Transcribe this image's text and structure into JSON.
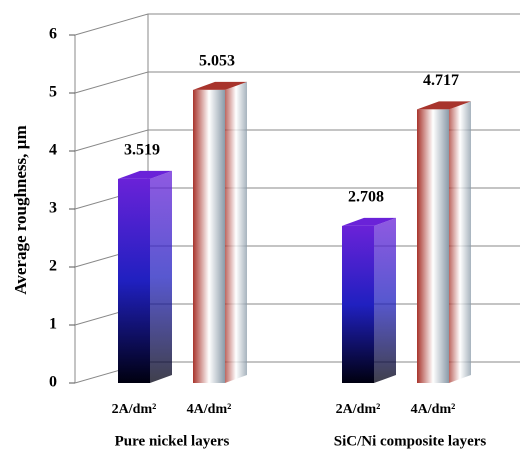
{
  "chart_data": {
    "type": "bar3d",
    "y_label": "Average roughness, µm",
    "categories": [
      "Pure nickel layers",
      "SiC/Ni composite layers"
    ],
    "series": [
      {
        "name": "2A/dm²",
        "color": "#6a22d8",
        "values": [
          3.519,
          2.708
        ]
      },
      {
        "name": "4A/dm²",
        "color": "#a8342c",
        "values": [
          5.053,
          4.717
        ]
      }
    ],
    "ylim": [
      0,
      6
    ],
    "yticks": [
      0,
      1,
      2,
      3,
      4,
      5,
      6
    ],
    "grid": true
  }
}
